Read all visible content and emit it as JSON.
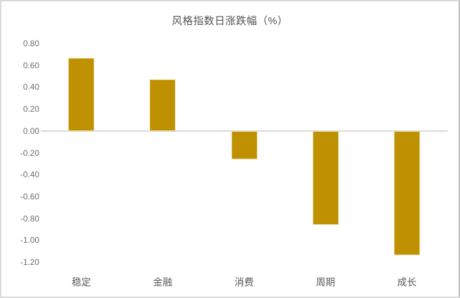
{
  "chart_data": {
    "type": "bar",
    "title": "风格指数日涨跌幅（%）",
    "categories": [
      "稳定",
      "金融",
      "消费",
      "周期",
      "成长"
    ],
    "values": [
      0.67,
      0.47,
      -0.26,
      -0.86,
      -1.14
    ],
    "xlabel": "",
    "ylabel": "",
    "ylim": [
      -1.2,
      0.8
    ],
    "ytick_step": 0.2,
    "ytick_decimals": 2,
    "grid": false,
    "legend": "none",
    "bar_color": "#BF9000",
    "bar_border_color": "#EADCA0",
    "axis_line_color": "#D9D9D9",
    "title_color": "#555555",
    "label_color": "#595959"
  }
}
